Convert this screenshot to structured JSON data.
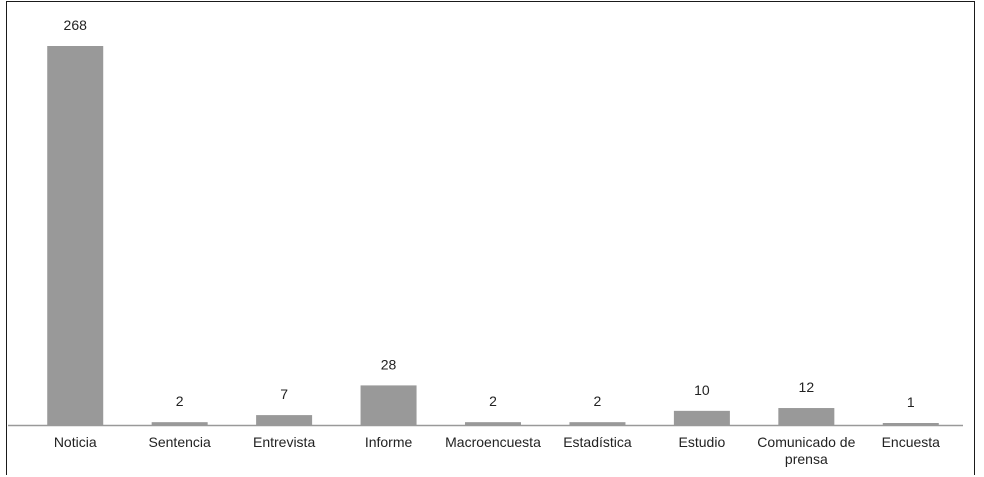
{
  "chart_data": {
    "type": "bar",
    "title": "",
    "xlabel": "",
    "ylabel": "",
    "categories": [
      "Noticia",
      "Sentencia",
      "Entrevista",
      "Informe",
      "Macroencuesta",
      "Estadística",
      "Estudio",
      "Comunicado de prensa",
      "Encuesta"
    ],
    "category_lines": [
      [
        "Noticia"
      ],
      [
        "Sentencia"
      ],
      [
        "Entrevista"
      ],
      [
        "Informe"
      ],
      [
        "Macroencuesta"
      ],
      [
        "Estadística"
      ],
      [
        "Estudio"
      ],
      [
        "Comunicado de",
        "prensa"
      ],
      [
        "Encuesta"
      ]
    ],
    "values": [
      268,
      2,
      7,
      28,
      2,
      2,
      10,
      12,
      1
    ],
    "ylim": [
      0,
      268
    ],
    "grid": false,
    "legend": "none",
    "bar_color": "#999999",
    "axis_color": "#999999",
    "text_color": "#222222"
  }
}
